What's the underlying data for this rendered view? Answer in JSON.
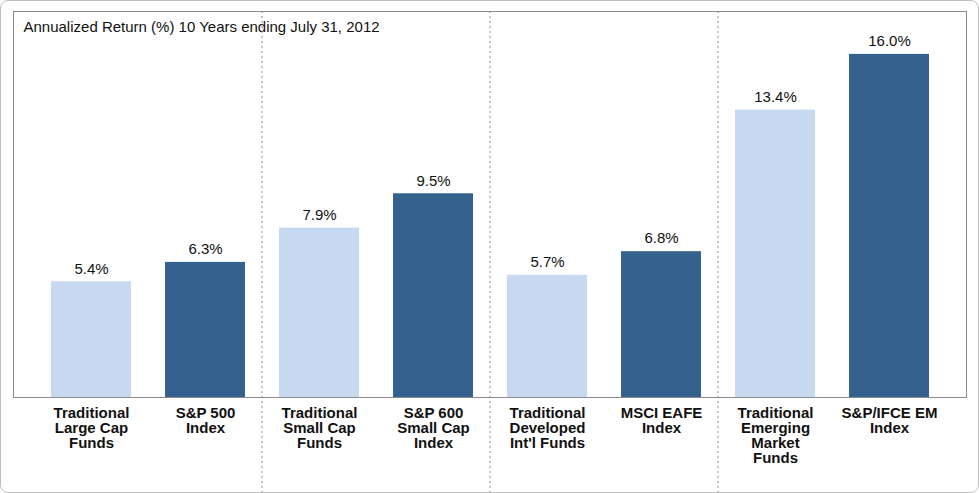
{
  "chart_data": {
    "type": "bar",
    "title": "Annualized Return (%) 10 Years ending July 31, 2012",
    "categories": [
      "Traditional Large Cap Funds",
      "S&P 500 Index",
      "Traditional Small Cap Funds",
      "S&P 600 Small Cap Index",
      "Traditional Developed Int'l Funds",
      "MSCI EAFE Index",
      "Traditional Emerging Market Funds",
      "S&P/IFCE EM Index"
    ],
    "values": [
      5.4,
      6.3,
      7.9,
      9.5,
      5.7,
      6.8,
      13.4,
      16.0
    ],
    "value_labels": [
      "5.4%",
      "6.3%",
      "7.9%",
      "9.5%",
      "5.7%",
      "6.8%",
      "13.4%",
      "16.0%"
    ],
    "colors": [
      "#c6d9f1",
      "#35618f",
      "#c6d9f1",
      "#35618f",
      "#c6d9f1",
      "#35618f",
      "#c6d9f1",
      "#35618f"
    ],
    "ylim": [
      0,
      18
    ],
    "data_labels": true,
    "tick_labels": "x",
    "grid": false
  }
}
